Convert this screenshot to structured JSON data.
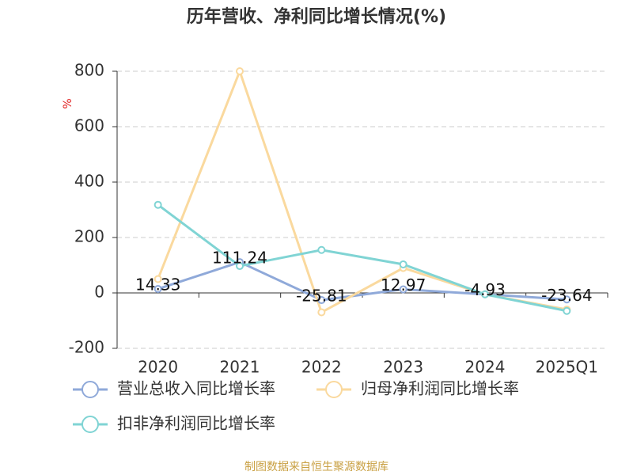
{
  "chart_data": {
    "type": "line",
    "title": "历年营收、净利同比增长情况(%)",
    "y_label": "%",
    "source": "制图数据来自恒生聚源数据库",
    "categories": [
      "2020",
      "2021",
      "2022",
      "2023",
      "2024",
      "2025Q1"
    ],
    "series": [
      {
        "name": "营业总收入同比增长率",
        "color": "#8fa9d9",
        "values": [
          14.33,
          111.24,
          -25.81,
          12.97,
          -4.93,
          -23.64
        ],
        "show_labels": true
      },
      {
        "name": "归母净利润同比增长率",
        "color": "#fad99e",
        "values": [
          50,
          800,
          -70,
          90,
          -5,
          -60
        ]
      },
      {
        "name": "扣非净利润同比增长率",
        "color": "#80d4d4",
        "values": [
          318,
          97,
          155,
          103,
          -5,
          -65
        ]
      }
    ],
    "ylim": [
      -200,
      800
    ],
    "yticks": [
      -200,
      0,
      200,
      400,
      600,
      800
    ],
    "grid": true
  }
}
